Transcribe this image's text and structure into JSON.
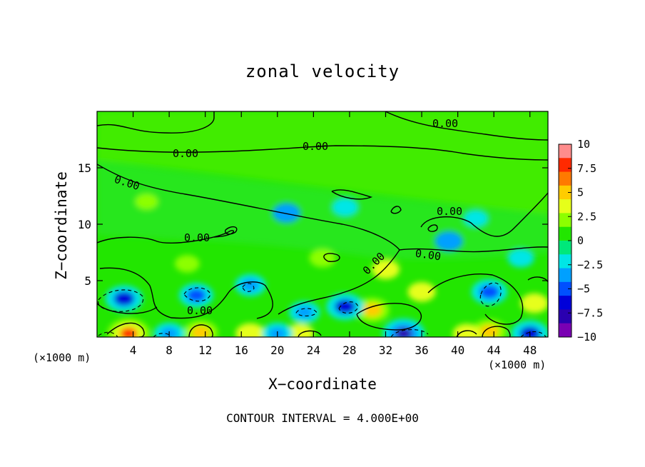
{
  "chart_data": {
    "type": "heatmap",
    "title": "zonal velocity",
    "xlabel": "X−coordinate",
    "ylabel": "Z−coordinate",
    "x_unit_left": "(×1000 m)",
    "x_unit_right": "(×1000 m)",
    "x_range": [
      0,
      50
    ],
    "y_range": [
      0,
      20
    ],
    "x_ticks": [
      4,
      8,
      12,
      16,
      20,
      24,
      28,
      32,
      36,
      40,
      44,
      48
    ],
    "y_ticks": [
      5,
      10,
      15
    ],
    "colorbar": {
      "range": [
        -10,
        10
      ],
      "ticks": [
        "10",
        "7.5",
        "5",
        "2.5",
        "0",
        "−2.5",
        "−5",
        "−7.5",
        "−10"
      ],
      "tick_values": [
        10,
        7.5,
        5,
        2.5,
        0,
        -2.5,
        -5,
        -7.5,
        -10
      ],
      "colors": [
        "#ff8c8c",
        "#ff2a00",
        "#ff7a00",
        "#ffcc00",
        "#e6ff1a",
        "#8cff00",
        "#22e600",
        "#00e87a",
        "#00e6e6",
        "#00a0ff",
        "#0050ff",
        "#0000d9",
        "#2a00b0",
        "#7a00b3"
      ]
    },
    "contour_interval_text": "CONTOUR INTERVAL = 4.000E+00",
    "contour_labels": [
      "0.00",
      "0.00",
      "0.00",
      "0.00",
      "0.00",
      "0.00",
      "0.00",
      "0.00",
      "0.00",
      "0.00"
    ],
    "features": [
      {
        "x": 3.5,
        "z": 0.3,
        "value": 7.5
      },
      {
        "x": 11.5,
        "z": 0.4,
        "value": 5
      },
      {
        "x": 17.0,
        "z": 0.3,
        "value": 3.5
      },
      {
        "x": 30.5,
        "z": 2.4,
        "value": 5
      },
      {
        "x": 43.5,
        "z": 0.5,
        "value": 5
      },
      {
        "x": 41.0,
        "z": 0.3,
        "value": 3
      },
      {
        "x": 22.5,
        "z": 0.3,
        "value": 3
      },
      {
        "x": 48.5,
        "z": 3.0,
        "value": 3
      },
      {
        "x": 3.0,
        "z": 3.4,
        "value": -6
      },
      {
        "x": 11.0,
        "z": 3.7,
        "value": -5
      },
      {
        "x": 17.0,
        "z": 4.6,
        "value": -4
      },
      {
        "x": 23.0,
        "z": 2.2,
        "value": -4
      },
      {
        "x": 27.5,
        "z": 2.7,
        "value": -6
      },
      {
        "x": 34.0,
        "z": 0.3,
        "value": -7.5
      },
      {
        "x": 43.5,
        "z": 4.0,
        "value": -5.5
      },
      {
        "x": 48.0,
        "z": 0.3,
        "value": -6
      },
      {
        "x": 8.0,
        "z": 0.3,
        "value": -4
      },
      {
        "x": 20.0,
        "z": 0.3,
        "value": -4
      },
      {
        "x": 21.0,
        "z": 11.0,
        "value": -3
      },
      {
        "x": 27.5,
        "z": 11.5,
        "value": -2.5
      },
      {
        "x": 39.0,
        "z": 8.5,
        "value": -3
      },
      {
        "x": 42.0,
        "z": 10.5,
        "value": -2
      },
      {
        "x": 47.0,
        "z": 7.0,
        "value": -2.5
      },
      {
        "x": 25.0,
        "z": 7.0,
        "value": 2.5
      },
      {
        "x": 32.0,
        "z": 6.0,
        "value": 3
      },
      {
        "x": 36.0,
        "z": 4.0,
        "value": 3
      },
      {
        "x": 10.0,
        "z": 6.5,
        "value": 2
      },
      {
        "x": 5.5,
        "z": 12.0,
        "value": 1.5
      }
    ],
    "grid": false,
    "legend_placement": "right colorbar"
  }
}
